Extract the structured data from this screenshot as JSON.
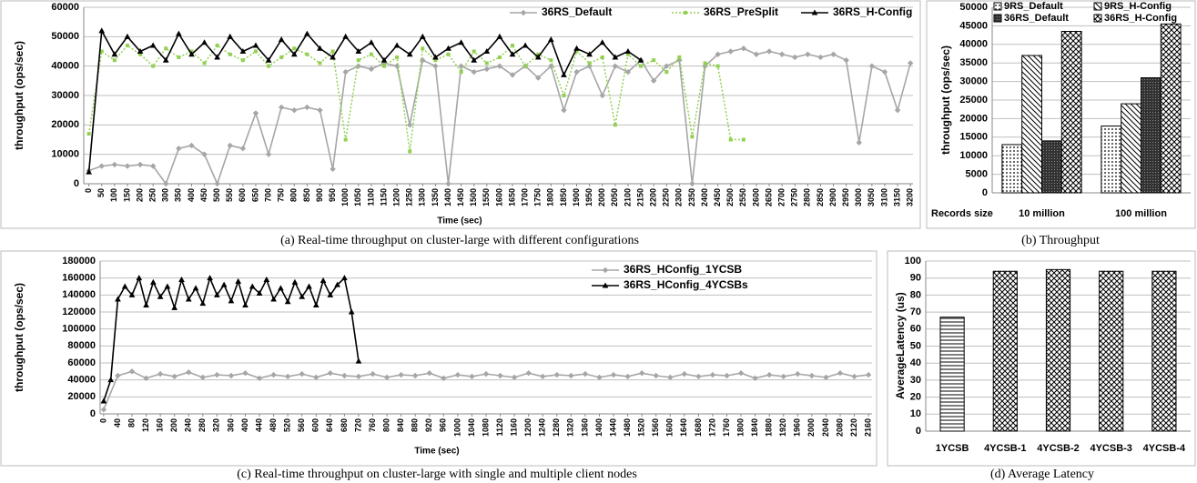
{
  "chart_data": [
    {
      "type": "line",
      "caption": "(a) Real-time throughput on cluster-large with different configurations",
      "y_label": "throughput (ops/sec)",
      "x_label": "Time (sec)",
      "xlim": [
        -20,
        3210
      ],
      "ylim": [
        0,
        60000
      ],
      "xticks": [
        0,
        50,
        100,
        150,
        200,
        250,
        300,
        350,
        400,
        450,
        500,
        550,
        600,
        650,
        700,
        750,
        800,
        850,
        900,
        950,
        1000,
        1050,
        1100,
        1150,
        1200,
        1250,
        1300,
        1350,
        1400,
        1450,
        1500,
        1550,
        1600,
        1650,
        1700,
        1750,
        1800,
        1850,
        1900,
        1950,
        2000,
        2050,
        2100,
        2150,
        2200,
        2250,
        2300,
        2350,
        2400,
        2450,
        2500,
        2550,
        2600,
        2650,
        2700,
        2750,
        2800,
        2850,
        2900,
        2950,
        3000,
        3050,
        3100,
        3150,
        3200
      ],
      "yticks": [
        0,
        10000,
        20000,
        30000,
        40000,
        50000,
        60000
      ],
      "grid": true,
      "series": [
        {
          "name": "36RS_Default",
          "color": "#a6a6a6",
          "marker": "diamond",
          "line_style": "solid",
          "x": [
            0,
            50,
            100,
            150,
            200,
            250,
            300,
            350,
            400,
            450,
            500,
            550,
            600,
            650,
            700,
            750,
            800,
            850,
            900,
            950,
            1000,
            1050,
            1100,
            1150,
            1200,
            1250,
            1300,
            1350,
            1400,
            1450,
            1500,
            1550,
            1600,
            1650,
            1700,
            1750,
            1800,
            1850,
            1900,
            1950,
            2000,
            2050,
            2100,
            2150,
            2200,
            2250,
            2300,
            2350,
            2400,
            2450,
            2500,
            2550,
            2600,
            2650,
            2700,
            2750,
            2800,
            2850,
            2900,
            2950,
            3000,
            3050,
            3100,
            3150,
            3200
          ],
          "values": [
            4500,
            6000,
            6500,
            6000,
            6500,
            6000,
            0,
            12000,
            13000,
            10000,
            0,
            13000,
            12000,
            24000,
            10000,
            26000,
            25000,
            26000,
            25000,
            5000,
            38000,
            40000,
            39000,
            41000,
            40000,
            20000,
            42000,
            40000,
            0,
            40000,
            38000,
            39000,
            40000,
            37000,
            40000,
            36000,
            40000,
            25000,
            38000,
            40000,
            30000,
            40000,
            38000,
            42000,
            35000,
            40000,
            42000,
            0,
            40000,
            44000,
            45000,
            46000,
            44000,
            45000,
            44000,
            43000,
            44000,
            43000,
            44000,
            42000,
            14000,
            40000,
            38000,
            25000,
            41000
          ]
        },
        {
          "name": "36RS_PreSplit",
          "color": "#92d050",
          "marker": "square",
          "line_style": "dotted",
          "x": [
            0,
            50,
            100,
            150,
            200,
            250,
            300,
            350,
            400,
            450,
            500,
            550,
            600,
            650,
            700,
            750,
            800,
            850,
            900,
            950,
            1000,
            1050,
            1100,
            1150,
            1200,
            1250,
            1300,
            1350,
            1400,
            1450,
            1500,
            1550,
            1600,
            1650,
            1700,
            1750,
            1800,
            1850,
            1900,
            1950,
            2000,
            2050,
            2100,
            2150,
            2200,
            2250,
            2300,
            2350,
            2400,
            2450,
            2500,
            2550
          ],
          "values": [
            17000,
            45000,
            42000,
            47000,
            44000,
            40000,
            46000,
            43000,
            45000,
            41000,
            47000,
            44000,
            42000,
            45000,
            40000,
            43000,
            46000,
            44000,
            41000,
            45000,
            15000,
            42000,
            44000,
            40000,
            43000,
            11000,
            46000,
            42000,
            44000,
            38000,
            45000,
            41000,
            43000,
            47000,
            40000,
            44000,
            42000,
            30000,
            45000,
            41000,
            43000,
            20000,
            44000,
            40000,
            42000,
            38000,
            43000,
            16000,
            41000,
            40000,
            15000,
            15000
          ]
        },
        {
          "name": "36RS_H-Config",
          "color": "#000000",
          "marker": "triangle",
          "line_style": "solid",
          "x": [
            0,
            50,
            100,
            150,
            200,
            250,
            300,
            350,
            400,
            450,
            500,
            550,
            600,
            650,
            700,
            750,
            800,
            850,
            900,
            950,
            1000,
            1050,
            1100,
            1150,
            1200,
            1250,
            1300,
            1350,
            1400,
            1450,
            1500,
            1550,
            1600,
            1650,
            1700,
            1750,
            1800,
            1850,
            1900,
            1950,
            2000,
            2050,
            2100,
            2150
          ],
          "values": [
            4000,
            52000,
            44000,
            50000,
            45000,
            47000,
            42000,
            51000,
            44000,
            48000,
            43000,
            50000,
            45000,
            47000,
            42000,
            49000,
            44000,
            51000,
            46000,
            43000,
            50000,
            45000,
            48000,
            42000,
            47000,
            44000,
            50000,
            43000,
            46000,
            48000,
            42000,
            45000,
            50000,
            44000,
            47000,
            43000,
            49000,
            37000,
            46000,
            44000,
            48000,
            43000,
            45000,
            42000
          ]
        }
      ]
    },
    {
      "type": "bar",
      "caption": "(b) Throughput",
      "y_label": "throughput (ops/sec)",
      "category_axis_label": "Records size",
      "categories": [
        "10 million",
        "100 million"
      ],
      "ylim": [
        0,
        50000
      ],
      "yticks": [
        0,
        5000,
        10000,
        15000,
        20000,
        25000,
        30000,
        35000,
        40000,
        45000,
        50000
      ],
      "grid": true,
      "series": [
        {
          "name": "9RS_Default",
          "color": "#000000",
          "pattern": "dots",
          "values": [
            13000,
            18000
          ]
        },
        {
          "name": "9RS_H-Config",
          "color": "#000000",
          "pattern": "diagonal",
          "values": [
            37000,
            24000
          ]
        },
        {
          "name": "36RS_Default",
          "color": "#000000",
          "pattern": "dense",
          "values": [
            14000,
            31000
          ]
        },
        {
          "name": "36RS_H-Config",
          "color": "#000000",
          "pattern": "crosshatch",
          "values": [
            43500,
            45500
          ]
        }
      ]
    },
    {
      "type": "line",
      "caption": "(c) Real-time throughput on cluster-large with single and multiple client nodes",
      "y_label": "throughput (ops/sec)",
      "x_label": "Time (sec)",
      "xlim": [
        -10,
        2170
      ],
      "ylim": [
        0,
        180000
      ],
      "xticks": [
        0,
        40,
        80,
        120,
        160,
        200,
        240,
        280,
        320,
        360,
        400,
        440,
        480,
        520,
        560,
        600,
        640,
        680,
        720,
        760,
        800,
        840,
        880,
        920,
        960,
        1000,
        1040,
        1080,
        1120,
        1160,
        1200,
        1240,
        1280,
        1320,
        1360,
        1400,
        1440,
        1480,
        1520,
        1560,
        1600,
        1640,
        1680,
        1720,
        1760,
        1800,
        1840,
        1880,
        1920,
        1960,
        2000,
        2040,
        2080,
        2120,
        2160
      ],
      "yticks": [
        0,
        20000,
        40000,
        60000,
        80000,
        100000,
        120000,
        140000,
        160000,
        180000
      ],
      "grid": true,
      "series": [
        {
          "name": "36RS_HConfig_1YCSB",
          "color": "#a6a6a6",
          "marker": "diamond",
          "line_style": "solid",
          "x": [
            0,
            40,
            80,
            120,
            160,
            200,
            240,
            280,
            320,
            360,
            400,
            440,
            480,
            520,
            560,
            600,
            640,
            680,
            720,
            760,
            800,
            840,
            880,
            920,
            960,
            1000,
            1040,
            1080,
            1120,
            1160,
            1200,
            1240,
            1280,
            1320,
            1360,
            1400,
            1440,
            1480,
            1520,
            1560,
            1600,
            1640,
            1680,
            1720,
            1760,
            1800,
            1840,
            1880,
            1920,
            1960,
            2000,
            2040,
            2080,
            2120,
            2160
          ],
          "values": [
            5000,
            45000,
            50000,
            42000,
            47000,
            44000,
            49000,
            43000,
            46000,
            45000,
            48000,
            42000,
            46000,
            44000,
            47000,
            43000,
            48000,
            45000,
            44000,
            47000,
            43000,
            46000,
            45000,
            48000,
            42000,
            46000,
            44000,
            47000,
            45000,
            43000,
            48000,
            44000,
            46000,
            45000,
            47000,
            43000,
            46000,
            44000,
            48000,
            45000,
            43000,
            47000,
            44000,
            46000,
            45000,
            48000,
            42000,
            46000,
            44000,
            47000,
            45000,
            43000,
            48000,
            44000,
            46000
          ]
        },
        {
          "name": "36RS_HConfig_4YCSBs",
          "color": "#000000",
          "marker": "triangle",
          "line_style": "solid",
          "x": [
            0,
            20,
            40,
            60,
            80,
            100,
            120,
            140,
            160,
            180,
            200,
            220,
            240,
            260,
            280,
            300,
            320,
            340,
            360,
            380,
            400,
            420,
            440,
            460,
            480,
            500,
            520,
            540,
            560,
            580,
            600,
            620,
            640,
            660,
            680,
            700,
            720
          ],
          "values": [
            15000,
            40000,
            135000,
            150000,
            140000,
            160000,
            128000,
            155000,
            138000,
            150000,
            125000,
            158000,
            135000,
            148000,
            130000,
            160000,
            140000,
            152000,
            133000,
            156000,
            128000,
            150000,
            142000,
            158000,
            135000,
            148000,
            132000,
            155000,
            138000,
            150000,
            128000,
            157000,
            140000,
            152000,
            160000,
            120000,
            62000
          ]
        }
      ]
    },
    {
      "type": "bar",
      "caption": "(d) Average Latency",
      "y_label": "AverageLatency (us)",
      "categories": [
        "1YCSB",
        "4YCSB-1",
        "4YCSB-2",
        "4YCSB-3",
        "4YCSB-4"
      ],
      "values": [
        67,
        94,
        95,
        94,
        94
      ],
      "color": "#000000",
      "patterns": [
        "horizontal",
        "crosshatch",
        "crosshatch",
        "crosshatch",
        "crosshatch"
      ],
      "ylim": [
        0,
        100
      ],
      "yticks": [
        0,
        10,
        20,
        30,
        40,
        50,
        60,
        70,
        80,
        90,
        100
      ],
      "grid": true
    }
  ]
}
